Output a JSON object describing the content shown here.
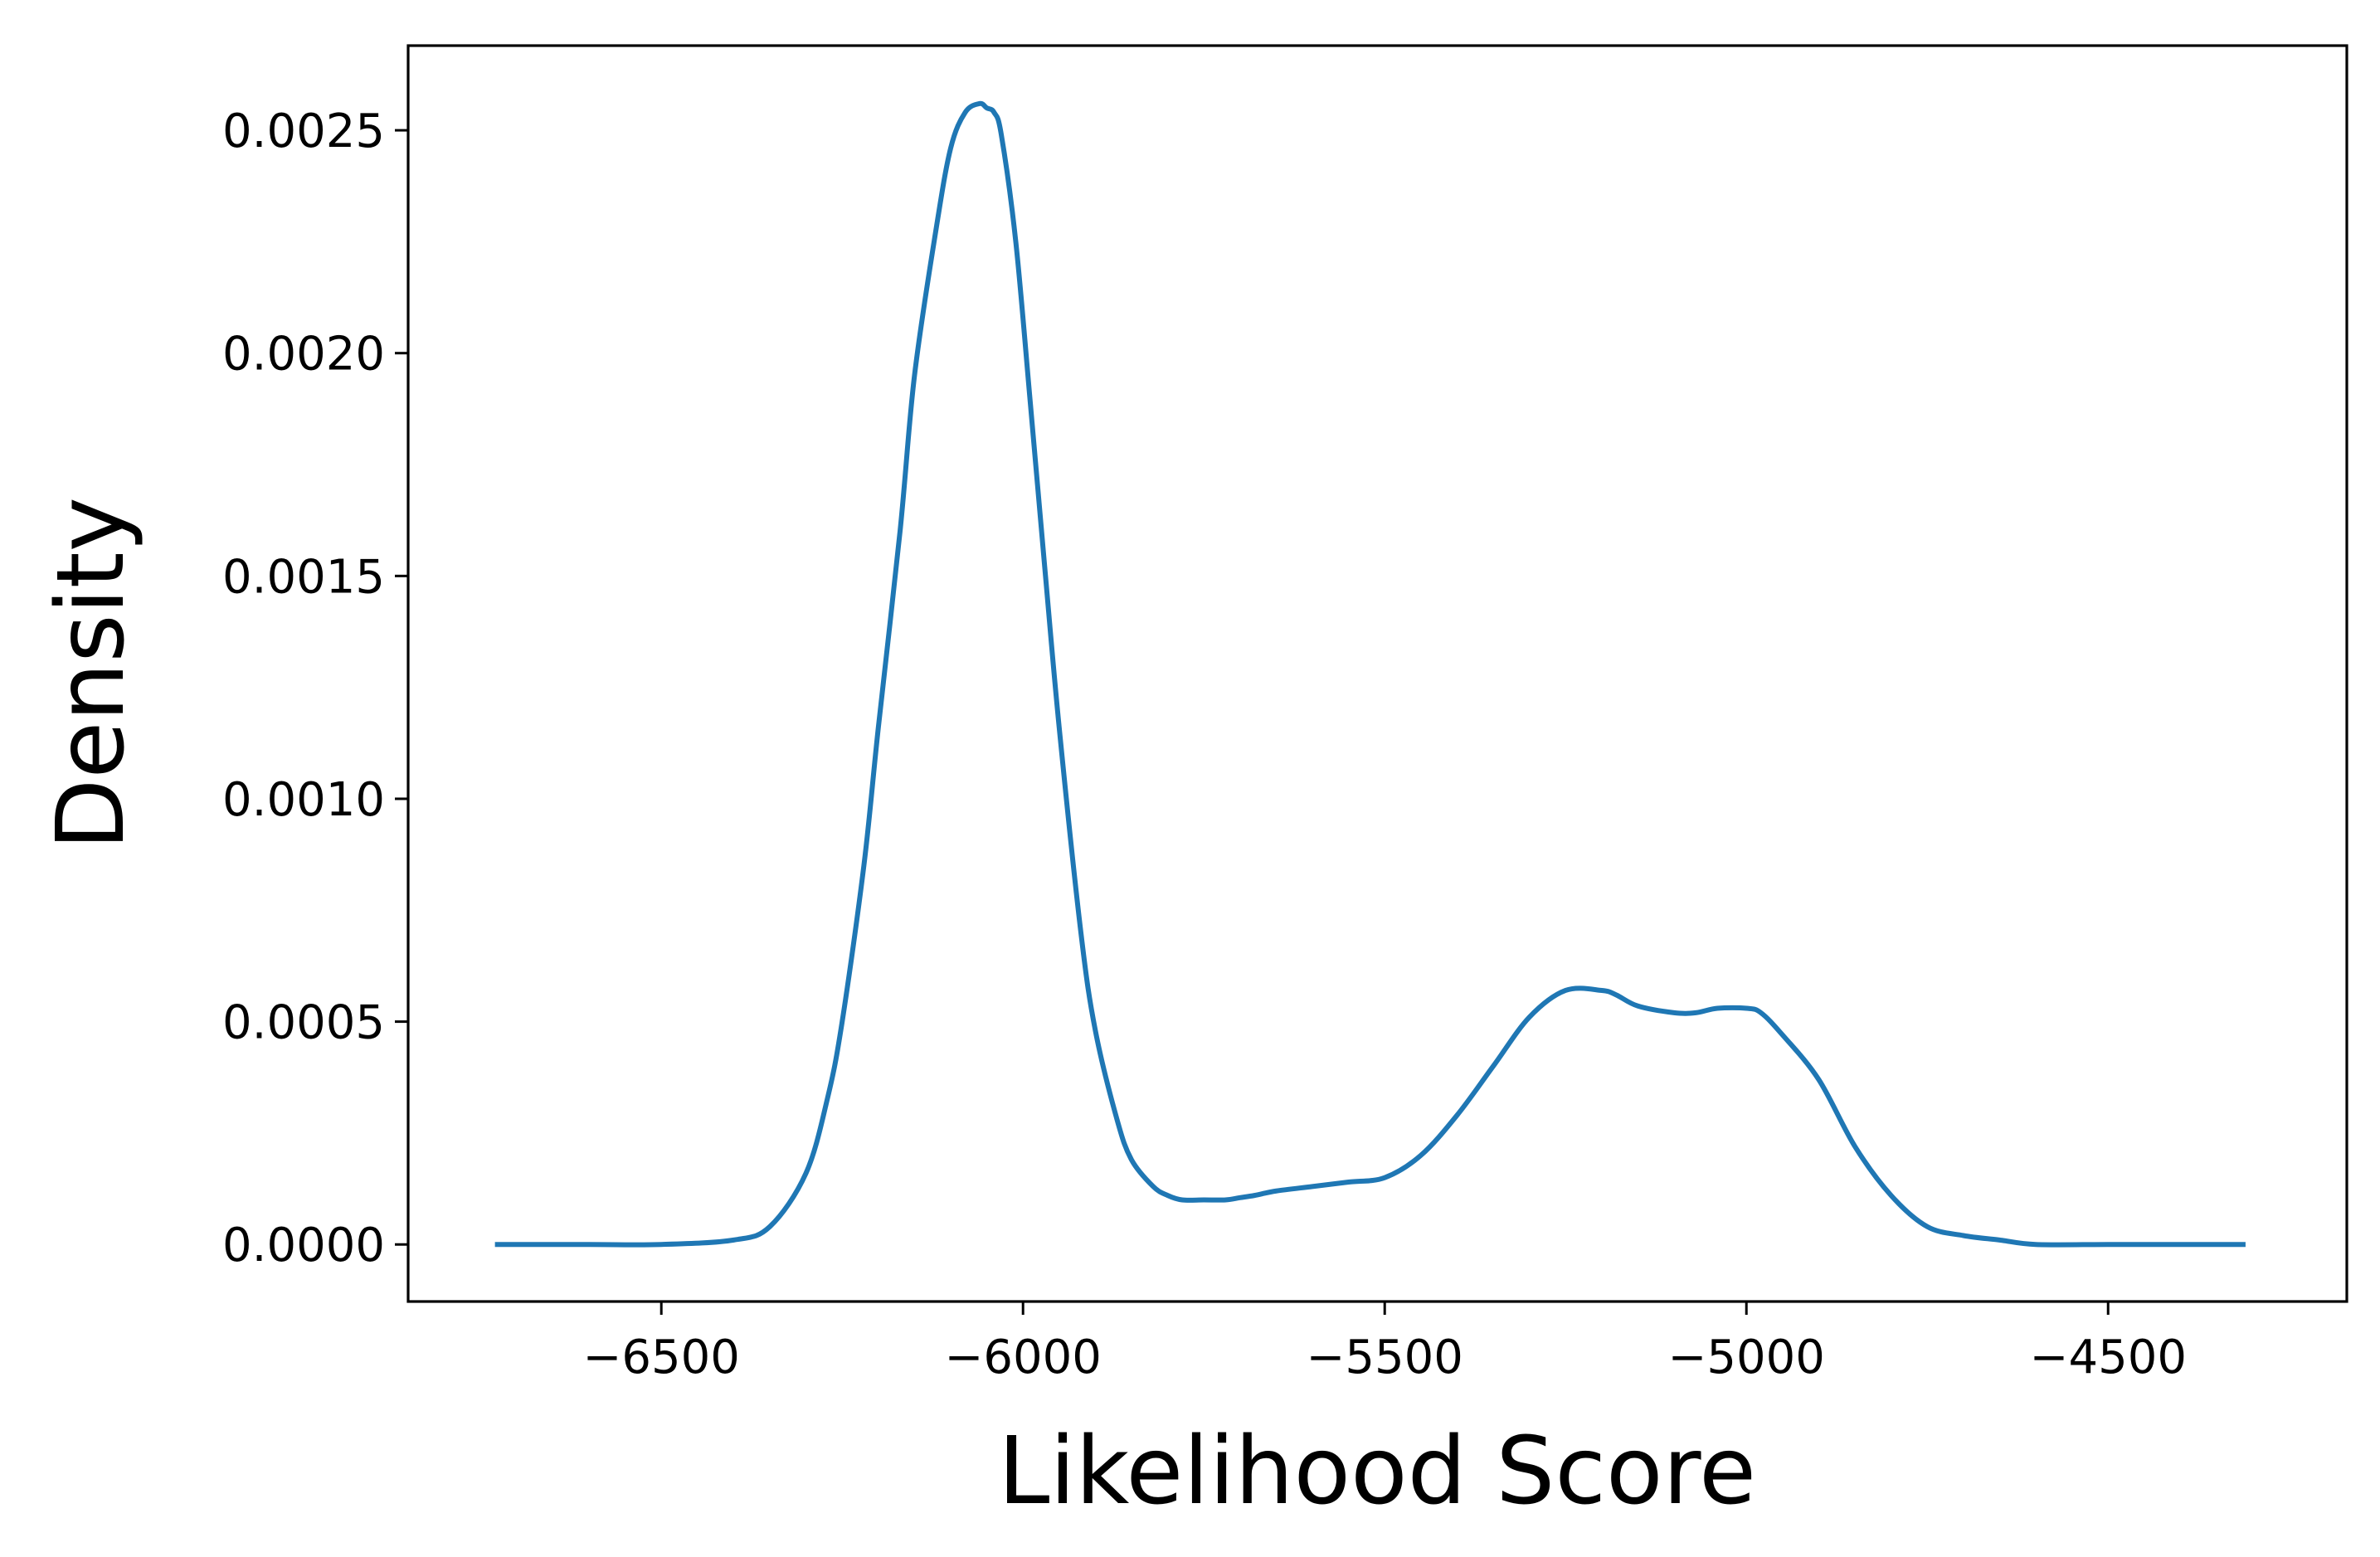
{
  "chart_data": {
    "type": "line",
    "title": "",
    "xlabel": "Likelihood Score",
    "ylabel": "Density",
    "xlim": [
      -6850,
      -4170
    ],
    "ylim": [
      -0.000128,
      0.00269
    ],
    "xticks": [
      -6500,
      -6000,
      -5500,
      -5000,
      -4500
    ],
    "xtick_labels": [
      "−6500",
      "−6000",
      "−5500",
      "−5000",
      "−4500"
    ],
    "yticks": [
      0.0,
      0.0005,
      0.001,
      0.0015,
      0.002,
      0.0025
    ],
    "ytick_labels": [
      "0.0000",
      "0.0005",
      "0.0010",
      "0.0015",
      "0.0020",
      "0.0025"
    ],
    "grid": false,
    "legend": "none",
    "series": [
      {
        "color": "#1f77b4",
        "x": [
          -6730,
          -6600,
          -6500,
          -6400,
          -6350,
          -6300,
          -6270,
          -6250,
          -6220,
          -6200,
          -6170,
          -6150,
          -6120,
          -6100,
          -6080,
          -6060,
          -6050,
          -6040,
          -6030,
          -6010,
          -5990,
          -5970,
          -5950,
          -5920,
          -5900,
          -5870,
          -5850,
          -5820,
          -5800,
          -5780,
          -5750,
          -5720,
          -5700,
          -5680,
          -5650,
          -5600,
          -5550,
          -5500,
          -5450,
          -5400,
          -5350,
          -5300,
          -5250,
          -5200,
          -5180,
          -5150,
          -5100,
          -5070,
          -5040,
          -5000,
          -4980,
          -4950,
          -4900,
          -4850,
          -4800,
          -4750,
          -4700,
          -4650,
          -4600,
          -4500,
          -4400,
          -4310
        ],
        "y": [
          0.0,
          0.0,
          0.0,
          1e-05,
          4e-05,
          0.00016,
          0.00033,
          0.0005,
          0.00085,
          0.00116,
          0.0016,
          0.00195,
          0.00228,
          0.00246,
          0.00254,
          0.00256,
          0.00255,
          0.00254,
          0.00249,
          0.00225,
          0.00189,
          0.00152,
          0.00116,
          0.0007,
          0.00048,
          0.00028,
          0.00019,
          0.00013,
          0.00011,
          0.0001,
          0.0001,
          0.0001,
          0.000105,
          0.00011,
          0.00012,
          0.00013,
          0.00014,
          0.00015,
          0.0002,
          0.00029,
          0.0004,
          0.00051,
          0.00057,
          0.00057,
          0.00056,
          0.000535,
          0.00052,
          0.00052,
          0.00053,
          0.00053,
          0.00052,
          0.00047,
          0.00037,
          0.00022,
          0.00011,
          4e-05,
          2e-05,
          1e-05,
          0.0,
          0.0,
          0.0,
          0.0
        ]
      }
    ]
  }
}
